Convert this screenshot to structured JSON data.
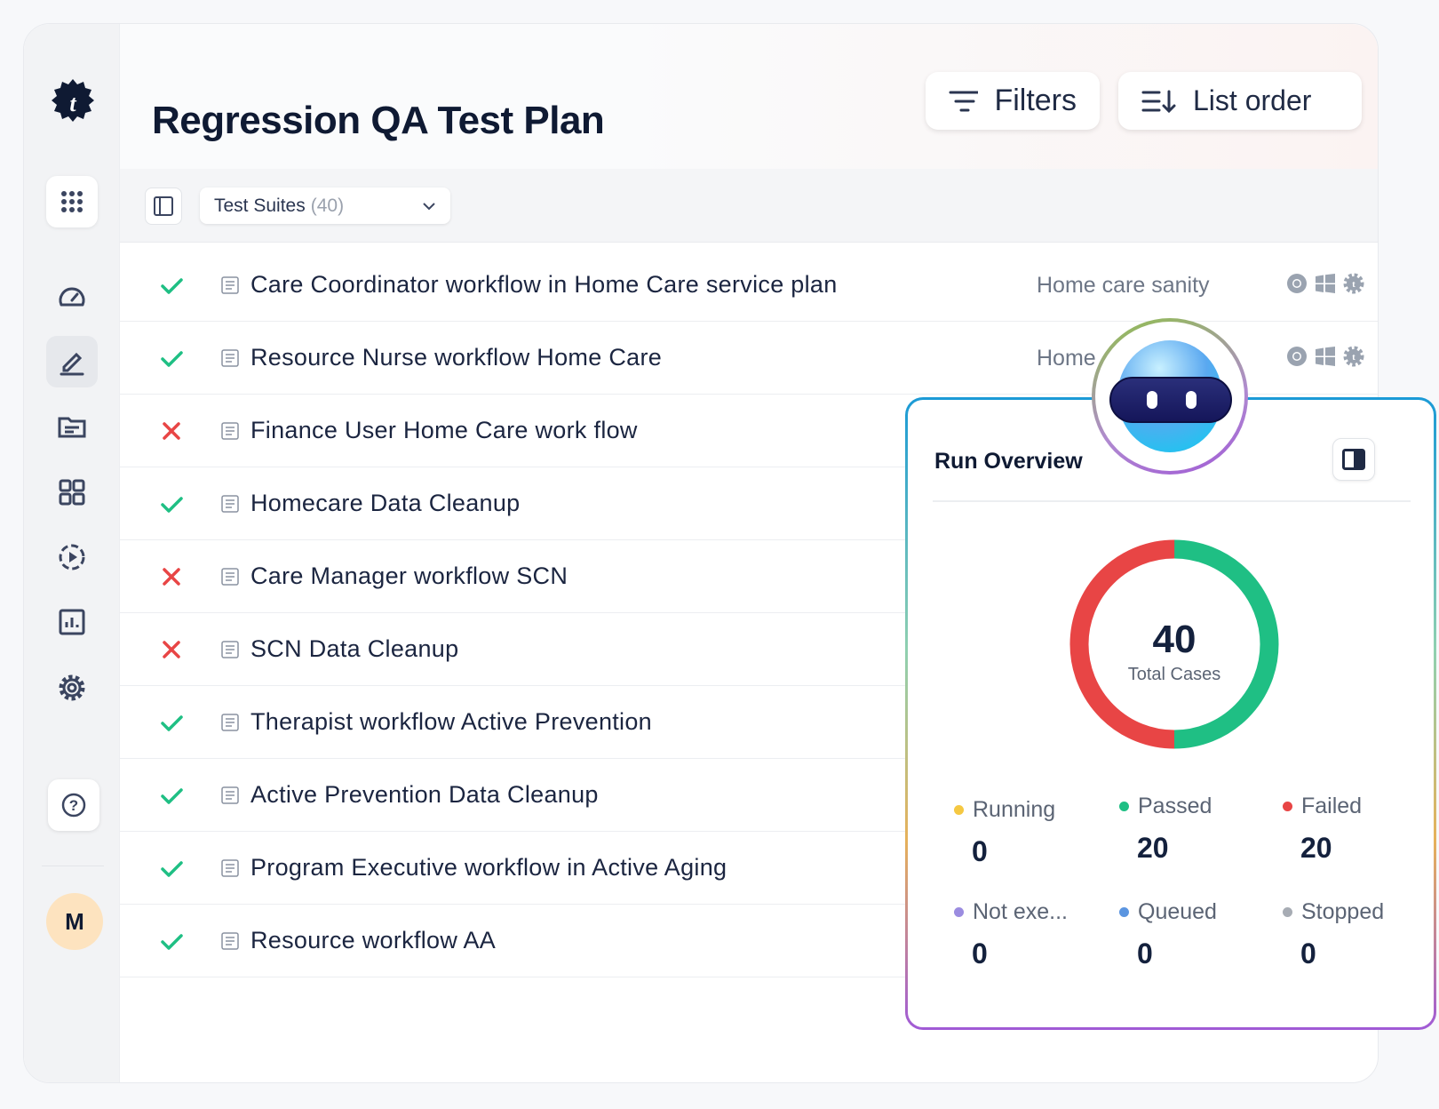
{
  "header": {
    "title": "Regression QA Test Plan",
    "filters_label": "Filters",
    "list_order_label": "List order"
  },
  "toolbar": {
    "dropdown_label": "Test Suites",
    "dropdown_count": "(40)"
  },
  "sidebar": {
    "items": [
      "apps-grid",
      "dashboard",
      "edit",
      "folder",
      "modules",
      "runs",
      "reports",
      "settings"
    ],
    "active": "edit",
    "help": "help",
    "avatar_initial": "M"
  },
  "rows": [
    {
      "status": "passed",
      "name": "Care Coordinator workflow in Home Care service plan",
      "suite": "Home care sanity"
    },
    {
      "status": "passed",
      "name": "Resource Nurse workflow Home Care",
      "suite": "Home"
    },
    {
      "status": "failed",
      "name": "Finance User Home Care work flow",
      "suite": ""
    },
    {
      "status": "passed",
      "name": "Homecare Data Cleanup",
      "suite": ""
    },
    {
      "status": "failed",
      "name": "Care Manager workflow SCN",
      "suite": ""
    },
    {
      "status": "failed",
      "name": "SCN Data Cleanup",
      "suite": ""
    },
    {
      "status": "passed",
      "name": "Therapist workflow Active Prevention",
      "suite": ""
    },
    {
      "status": "passed",
      "name": "Active Prevention Data Cleanup",
      "suite": ""
    },
    {
      "status": "passed",
      "name": "Program Executive workflow in Active Aging",
      "suite": ""
    },
    {
      "status": "passed",
      "name": "Resource workflow AA",
      "suite": ""
    }
  ],
  "overview": {
    "title": "Run Overview",
    "total": "40",
    "total_label": "Total Cases",
    "stats": [
      {
        "label": "Running",
        "value": "0",
        "color": "#f5c842"
      },
      {
        "label": "Passed",
        "value": "20",
        "color": "#1fbf84"
      },
      {
        "label": "Failed",
        "value": "20",
        "color": "#e84545"
      },
      {
        "label": "Not exe...",
        "value": "0",
        "color": "#9b8ce0"
      },
      {
        "label": "Queued",
        "value": "0",
        "color": "#5b95e0"
      },
      {
        "label": "Stopped",
        "value": "0",
        "color": "#a7acb4"
      }
    ]
  },
  "colors": {
    "passed": "#1fbf84",
    "failed": "#e84545",
    "brand": "#0f1a33"
  }
}
